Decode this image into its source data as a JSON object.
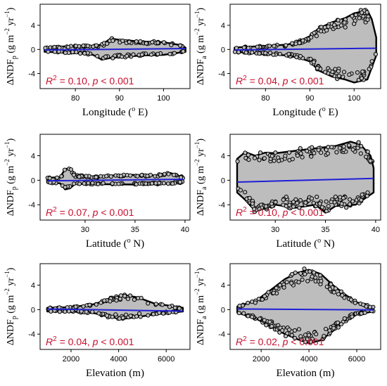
{
  "colors": {
    "cloud": "#bdbdbd",
    "point_edge": "#000000",
    "fit_line": "#1f1fd6",
    "annotation": "#c8102e"
  },
  "chart_data": [
    {
      "type": "scatter",
      "panel": "a",
      "xlabel": "Longitude (° E)",
      "ylabel": "ΔNDF_p (g m⁻² yr⁻¹)",
      "xlabel_parts": {
        "main": "Longitude (",
        "sup": "o",
        "end": " E)"
      },
      "ylabel_parts": {
        "delta": "ΔNDF",
        "sub": "p",
        "units": " (g m",
        "sup1": "−2",
        "mid": " yr",
        "sup2": "−1",
        "end": ")"
      },
      "xlim": [
        72,
        106
      ],
      "ylim": [
        -6.5,
        7.5
      ],
      "xticks": [
        80,
        90,
        100
      ],
      "yticks": [
        -4,
        0,
        4
      ],
      "xtick_labels": [
        "80",
        "90",
        "100"
      ],
      "ytick_labels": [
        "-4",
        "0",
        "4"
      ],
      "fit_line": {
        "x": [
          73,
          105
        ],
        "y": [
          -0.1,
          0.15
        ]
      },
      "annotation": {
        "r2_label": "R",
        "r2_sup": "2",
        "r2_value": " = 0.10, ",
        "p_label": "p",
        "p_value": " < 0.001"
      },
      "x_range": [
        73,
        105
      ],
      "upper_envelope": [
        [
          73,
          0.3
        ],
        [
          80,
          0.6
        ],
        [
          84,
          0.6
        ],
        [
          86,
          0.8
        ],
        [
          88,
          1.8
        ],
        [
          90,
          1.6
        ],
        [
          95,
          1.3
        ],
        [
          100,
          1.2
        ],
        [
          104,
          0.7
        ],
        [
          105,
          0.3
        ]
      ],
      "lower_envelope": [
        [
          73,
          -0.4
        ],
        [
          80,
          -0.6
        ],
        [
          84,
          -0.9
        ],
        [
          86,
          -1.7
        ],
        [
          88,
          -1.4
        ],
        [
          95,
          -1.0
        ],
        [
          100,
          -0.9
        ],
        [
          105,
          -0.4
        ]
      ]
    },
    {
      "type": "scatter",
      "panel": "b",
      "xlabel": "Longitude (° E)",
      "ylabel": "ΔNDF_a (g m⁻² yr⁻¹)",
      "xlabel_parts": {
        "main": "Longitude (",
        "sup": "o",
        "end": " E)"
      },
      "ylabel_parts": {
        "delta": "ΔNDF",
        "sub": "a",
        "units": " (g m",
        "sup1": "−2",
        "mid": " yr",
        "sup2": "−1",
        "end": ")"
      },
      "xlim": [
        72,
        106
      ],
      "ylim": [
        -6.5,
        7.5
      ],
      "xticks": [
        80,
        90,
        100
      ],
      "yticks": [
        -4,
        0,
        4
      ],
      "xtick_labels": [
        "80",
        "90",
        "100"
      ],
      "ytick_labels": [
        "-4",
        "0",
        "4"
      ],
      "fit_line": {
        "x": [
          73,
          105
        ],
        "y": [
          -0.1,
          0.2
        ]
      },
      "annotation": {
        "r2_label": "R",
        "r2_sup": "2",
        "r2_value": " = 0.04, ",
        "p_label": "p",
        "p_value": " < 0.001"
      },
      "x_range": [
        73,
        105
      ],
      "upper_envelope": [
        [
          73,
          0.3
        ],
        [
          85,
          0.8
        ],
        [
          88,
          1.5
        ],
        [
          90,
          2.2
        ],
        [
          92,
          3.5
        ],
        [
          95,
          4.5
        ],
        [
          98,
          5.2
        ],
        [
          100,
          6.0
        ],
        [
          103,
          6.5
        ],
        [
          104,
          5.0
        ],
        [
          105,
          2.0
        ]
      ],
      "lower_envelope": [
        [
          73,
          -0.4
        ],
        [
          85,
          -1.0
        ],
        [
          88,
          -1.5
        ],
        [
          90,
          -2.0
        ],
        [
          92,
          -3.5
        ],
        [
          95,
          -4.5
        ],
        [
          98,
          -5.0
        ],
        [
          100,
          -5.5
        ],
        [
          103,
          -5.0
        ],
        [
          104,
          -3.0
        ],
        [
          105,
          -1.0
        ]
      ]
    },
    {
      "type": "scatter",
      "panel": "c",
      "xlabel": "Latitude (° N)",
      "ylabel": "ΔNDF_p (g m⁻² yr⁻¹)",
      "xlabel_parts": {
        "main": "Latitude (",
        "sup": "o",
        "end": " N)"
      },
      "ylabel_parts": {
        "delta": "ΔNDF",
        "sub": "p",
        "units": " (g m",
        "sup1": "−2",
        "mid": " yr",
        "sup2": "−1",
        "end": ")"
      },
      "xlim": [
        25.5,
        40.5
      ],
      "ylim": [
        -6.5,
        7.5
      ],
      "xticks": [
        30,
        35,
        40
      ],
      "yticks": [
        -4,
        0,
        4
      ],
      "xtick_labels": [
        "30",
        "35",
        "40"
      ],
      "ytick_labels": [
        "-4",
        "0",
        "4"
      ],
      "fit_line": {
        "x": [
          26.2,
          39.8
        ],
        "y": [
          -0.1,
          0.15
        ]
      },
      "annotation": {
        "r2_label": "R",
        "r2_sup": "2",
        "r2_value": " = 0.07, ",
        "p_label": "p",
        "p_value": " < 0.001"
      },
      "x_range": [
        26.2,
        39.8
      ],
      "upper_envelope": [
        [
          26.2,
          0.4
        ],
        [
          27.5,
          0.5
        ],
        [
          28,
          1.8
        ],
        [
          28.5,
          2.0
        ],
        [
          29,
          0.8
        ],
        [
          31,
          0.6
        ],
        [
          34,
          0.9
        ],
        [
          37,
          0.8
        ],
        [
          38.5,
          1.2
        ],
        [
          39.8,
          0.5
        ]
      ],
      "lower_envelope": [
        [
          26.2,
          -0.4
        ],
        [
          27.5,
          -0.5
        ],
        [
          28,
          -1.5
        ],
        [
          28.5,
          -1.3
        ],
        [
          29,
          -0.6
        ],
        [
          35,
          -0.7
        ],
        [
          38,
          -0.6
        ],
        [
          39.8,
          -0.4
        ]
      ]
    },
    {
      "type": "scatter",
      "panel": "d",
      "xlabel": "Latitude (° N)",
      "ylabel": "ΔNDF_a (g m⁻² yr⁻¹)",
      "xlabel_parts": {
        "main": "Latitude (",
        "sup": "o",
        "end": " N)"
      },
      "ylabel_parts": {
        "delta": "ΔNDF",
        "sub": "a",
        "units": " (g m",
        "sup1": "−2",
        "mid": " yr",
        "sup2": "−1",
        "end": ")"
      },
      "xlim": [
        25.5,
        40.5
      ],
      "ylim": [
        -6.5,
        7.5
      ],
      "xticks": [
        30,
        35,
        40
      ],
      "yticks": [
        -4,
        0,
        4
      ],
      "xtick_labels": [
        "30",
        "35",
        "40"
      ],
      "ytick_labels": [
        "-4",
        "0",
        "4"
      ],
      "fit_line": {
        "x": [
          26.2,
          39.8
        ],
        "y": [
          -0.3,
          0.3
        ]
      },
      "annotation": {
        "r2_label": "R",
        "r2_sup": "2",
        "r2_value": " = 0.10, ",
        "p_label": "p",
        "p_value": " < 0.001"
      },
      "x_range": [
        26.2,
        39.8
      ],
      "upper_envelope": [
        [
          26.2,
          3.5
        ],
        [
          27,
          4.6
        ],
        [
          28,
          4.0
        ],
        [
          29,
          4.5
        ],
        [
          30,
          4.4
        ],
        [
          32,
          4.8
        ],
        [
          34,
          5.2
        ],
        [
          36,
          5.6
        ],
        [
          37.5,
          6.3
        ],
        [
          38.5,
          5.8
        ],
        [
          39.5,
          4.0
        ],
        [
          39.8,
          2.0
        ]
      ],
      "lower_envelope": [
        [
          26.2,
          -2.0
        ],
        [
          27,
          -3.2
        ],
        [
          28,
          -5.0
        ],
        [
          29,
          -4.6
        ],
        [
          30,
          -4.0
        ],
        [
          32,
          -4.5
        ],
        [
          34,
          -4.0
        ],
        [
          35,
          -5.3
        ],
        [
          36,
          -4.2
        ],
        [
          38,
          -4.0
        ],
        [
          39.8,
          -2.0
        ]
      ]
    },
    {
      "type": "scatter",
      "panel": "e",
      "xlabel": "Elevation (m)",
      "ylabel": "ΔNDF_p (g m⁻² yr⁻¹)",
      "xlabel_parts": {
        "main": "Elevation (m)",
        "sup": "",
        "end": ""
      },
      "ylabel_parts": {
        "delta": "ΔNDF",
        "sub": "p",
        "units": " (g m",
        "sup1": "−2",
        "mid": " yr",
        "sup2": "−1",
        "end": ")"
      },
      "xlim": [
        700,
        7000
      ],
      "ylim": [
        -6.5,
        7.5
      ],
      "xticks": [
        2000,
        4000,
        6000
      ],
      "yticks": [
        -4,
        0,
        4
      ],
      "xtick_labels": [
        "2000",
        "4000",
        "6000"
      ],
      "ytick_labels": [
        "-4",
        "0",
        "4"
      ],
      "fit_line": {
        "x": [
          1000,
          6700
        ],
        "y": [
          0.1,
          -0.25
        ]
      },
      "annotation": {
        "r2_label": "R",
        "r2_sup": "2",
        "r2_value": " = 0.04, ",
        "p_label": "p",
        "p_value": " < 0.001"
      },
      "x_range": [
        1000,
        6700
      ],
      "upper_envelope": [
        [
          1000,
          0.3
        ],
        [
          2000,
          0.4
        ],
        [
          3000,
          0.9
        ],
        [
          3600,
          1.8
        ],
        [
          4200,
          2.4
        ],
        [
          4800,
          2.0
        ],
        [
          5500,
          1.0
        ],
        [
          6200,
          0.6
        ],
        [
          6700,
          0.3
        ]
      ],
      "lower_envelope": [
        [
          1000,
          -0.3
        ],
        [
          2000,
          -0.3
        ],
        [
          3000,
          -0.6
        ],
        [
          3600,
          -1.2
        ],
        [
          4200,
          -1.5
        ],
        [
          4800,
          -1.2
        ],
        [
          5500,
          -0.8
        ],
        [
          6200,
          -0.5
        ],
        [
          6700,
          -0.3
        ]
      ]
    },
    {
      "type": "scatter",
      "panel": "f",
      "xlabel": "Elevation (m)",
      "ylabel": "ΔNDF_a (g m⁻² yr⁻¹)",
      "xlabel_parts": {
        "main": "Elevation (m)",
        "sup": "",
        "end": ""
      },
      "ylabel_parts": {
        "delta": "ΔNDF",
        "sub": "a",
        "units": " (g m",
        "sup1": "−2",
        "mid": " yr",
        "sup2": "−1",
        "end": ")"
      },
      "xlim": [
        700,
        7000
      ],
      "ylim": [
        -6.5,
        7.5
      ],
      "xticks": [
        2000,
        4000,
        6000
      ],
      "yticks": [
        -4,
        0,
        4
      ],
      "xtick_labels": [
        "2000",
        "4000",
        "6000"
      ],
      "ytick_labels": [
        "-4",
        "0",
        "4"
      ],
      "fit_line": {
        "x": [
          1000,
          6700
        ],
        "y": [
          0.1,
          -0.05
        ]
      },
      "annotation": {
        "r2_label": "R",
        "r2_sup": "2",
        "r2_value": " = 0.02, ",
        "p_label": "p",
        "p_value": " < 0.001"
      },
      "x_range": [
        1000,
        6700
      ],
      "upper_envelope": [
        [
          1000,
          0.5
        ],
        [
          1800,
          1.5
        ],
        [
          2500,
          3.5
        ],
        [
          3000,
          5.0
        ],
        [
          3500,
          6.0
        ],
        [
          4000,
          6.5
        ],
        [
          4500,
          5.8
        ],
        [
          5000,
          4.0
        ],
        [
          5500,
          2.5
        ],
        [
          6000,
          1.2
        ],
        [
          6700,
          0.4
        ]
      ],
      "lower_envelope": [
        [
          1000,
          -0.5
        ],
        [
          1800,
          -1.5
        ],
        [
          2500,
          -3.0
        ],
        [
          3000,
          -4.0
        ],
        [
          3500,
          -4.8
        ],
        [
          4000,
          -5.5
        ],
        [
          4500,
          -5.0
        ],
        [
          5000,
          -3.5
        ],
        [
          5500,
          -2.0
        ],
        [
          6000,
          -0.8
        ],
        [
          6700,
          -0.3
        ]
      ]
    }
  ]
}
